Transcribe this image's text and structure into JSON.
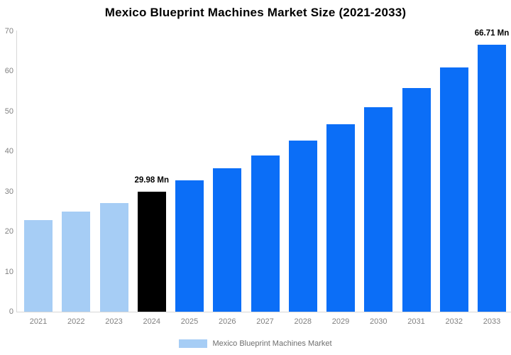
{
  "chart_data": {
    "type": "bar",
    "title": "Mexico Blueprint Machines Market Size (2021-2033)",
    "xlabel": "",
    "ylabel": "",
    "categories": [
      "2021",
      "2022",
      "2023",
      "2024",
      "2025",
      "2026",
      "2027",
      "2028",
      "2029",
      "2030",
      "2031",
      "2032",
      "2033"
    ],
    "values": [
      22.8,
      24.9,
      27.2,
      29.98,
      32.7,
      35.8,
      39.0,
      42.7,
      46.8,
      51.1,
      55.9,
      61.0,
      66.71
    ],
    "units": "Mn",
    "ylim": [
      0,
      70
    ],
    "yticks": [
      0,
      10,
      20,
      30,
      40,
      50,
      60,
      70
    ],
    "grid": false,
    "legend_position": "bottom-center",
    "series_name": "Mexico Blueprint Machines Market",
    "bar_roles": [
      "historical",
      "historical",
      "historical",
      "highlight",
      "forecast",
      "forecast",
      "forecast",
      "forecast",
      "forecast",
      "forecast",
      "forecast",
      "forecast",
      "forecast"
    ],
    "colors": {
      "historical": "#a6cdf5",
      "highlight": "#000000",
      "forecast": "#0b6ef7",
      "axis_line": "#d7d7d7",
      "tick_text": "#808080",
      "legend_text": "#6e6e6e",
      "title_text": "#000000",
      "background": "#ffffff"
    },
    "annotations": [
      {
        "category": "2024",
        "text": "29.98 Mn"
      },
      {
        "category": "2033",
        "text": "66.71 Mn"
      }
    ]
  },
  "legend": {
    "label": "Mexico Blueprint Machines Market"
  }
}
